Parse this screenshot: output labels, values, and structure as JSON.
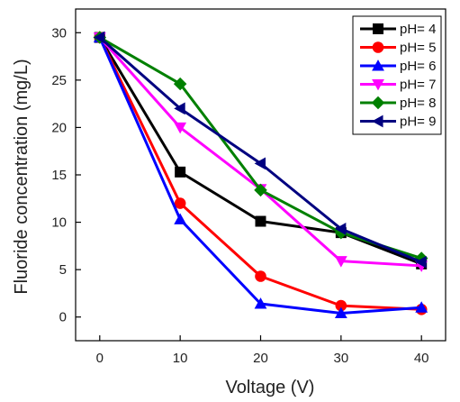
{
  "chart_data": {
    "type": "line",
    "title": "",
    "xlabel": "Voltage (V)",
    "ylabel": "Fluoride concentration (mg/L)",
    "xlim": [
      -3,
      43
    ],
    "ylim": [
      -2.5,
      32.5
    ],
    "xticks": [
      0,
      10,
      20,
      30,
      40
    ],
    "yticks": [
      0,
      5,
      10,
      15,
      20,
      25,
      30
    ],
    "x": [
      0,
      10,
      20,
      30,
      40
    ],
    "grid": false,
    "legend": "top-right",
    "series": [
      {
        "name": "pH= 4",
        "color": "#000000",
        "marker": "square",
        "values": [
          29.5,
          15.3,
          10.1,
          8.9,
          5.6
        ]
      },
      {
        "name": "pH= 5",
        "color": "#ff0000",
        "marker": "circle",
        "values": [
          29.5,
          12.0,
          4.3,
          1.2,
          0.8
        ]
      },
      {
        "name": "pH= 6",
        "color": "#0000ff",
        "marker": "triangle-up",
        "values": [
          29.5,
          10.3,
          1.4,
          0.4,
          1.0
        ]
      },
      {
        "name": "pH= 7",
        "color": "#ff00ff",
        "marker": "triangle-down",
        "values": [
          29.5,
          20.0,
          13.5,
          5.9,
          5.4
        ]
      },
      {
        "name": "pH= 8",
        "color": "#008000",
        "marker": "diamond",
        "values": [
          29.5,
          24.6,
          13.4,
          8.9,
          6.2
        ]
      },
      {
        "name": "pH= 9",
        "color": "#000080",
        "marker": "triangle-left",
        "values": [
          29.5,
          22.0,
          16.2,
          9.3,
          5.8
        ]
      }
    ]
  }
}
